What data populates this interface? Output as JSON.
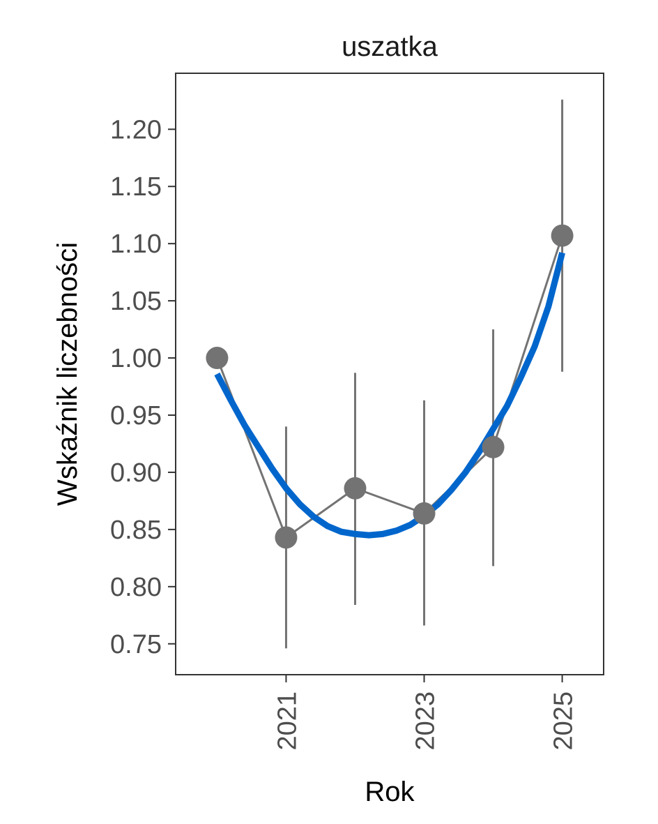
{
  "chart_data": {
    "type": "line",
    "title": "uszatka",
    "xlabel": "Rok",
    "ylabel": "Wskaźnik liczebności",
    "xlim": [
      2019.4,
      2025.6
    ],
    "ylim": [
      0.723,
      1.249
    ],
    "x_ticks": [
      2021,
      2023,
      2025
    ],
    "x_tick_labels": [
      "2021",
      "2023",
      "2025"
    ],
    "y_ticks": [
      0.75,
      0.8,
      0.85,
      0.9,
      0.95,
      1.0,
      1.05,
      1.1,
      1.15,
      1.2
    ],
    "y_tick_labels": [
      "0.75",
      "0.80",
      "0.85",
      "0.90",
      "0.95",
      "1.00",
      "1.05",
      "1.10",
      "1.15",
      "1.20"
    ],
    "grid": false,
    "series": [
      {
        "kind": "points_with_error_bars",
        "color": "#737373",
        "x": [
          2020,
          2021,
          2022,
          2023,
          2024,
          2025
        ],
        "y": [
          1.0,
          0.843,
          0.886,
          0.864,
          0.922,
          1.107
        ],
        "lower": [
          null,
          0.746,
          0.784,
          0.766,
          0.818,
          0.988
        ],
        "upper": [
          null,
          0.94,
          0.987,
          0.963,
          1.025,
          1.226
        ]
      },
      {
        "kind": "trend",
        "color": "#0066cc",
        "x": [
          2020.0,
          2020.2,
          2020.4,
          2020.6,
          2020.8,
          2021.0,
          2021.2,
          2021.4,
          2021.6,
          2021.8,
          2022.0,
          2022.2,
          2022.4,
          2022.6,
          2022.8,
          2023.0,
          2023.2,
          2023.4,
          2023.6,
          2023.8,
          2024.0,
          2024.2,
          2024.4,
          2024.6,
          2024.8,
          2025.0
        ],
        "y": [
          0.986,
          0.963,
          0.941,
          0.922,
          0.903,
          0.886,
          0.872,
          0.861,
          0.853,
          0.848,
          0.846,
          0.845,
          0.846,
          0.849,
          0.854,
          0.862,
          0.872,
          0.885,
          0.9,
          0.918,
          0.938,
          0.958,
          0.983,
          1.01,
          1.045,
          1.092
        ]
      }
    ]
  }
}
